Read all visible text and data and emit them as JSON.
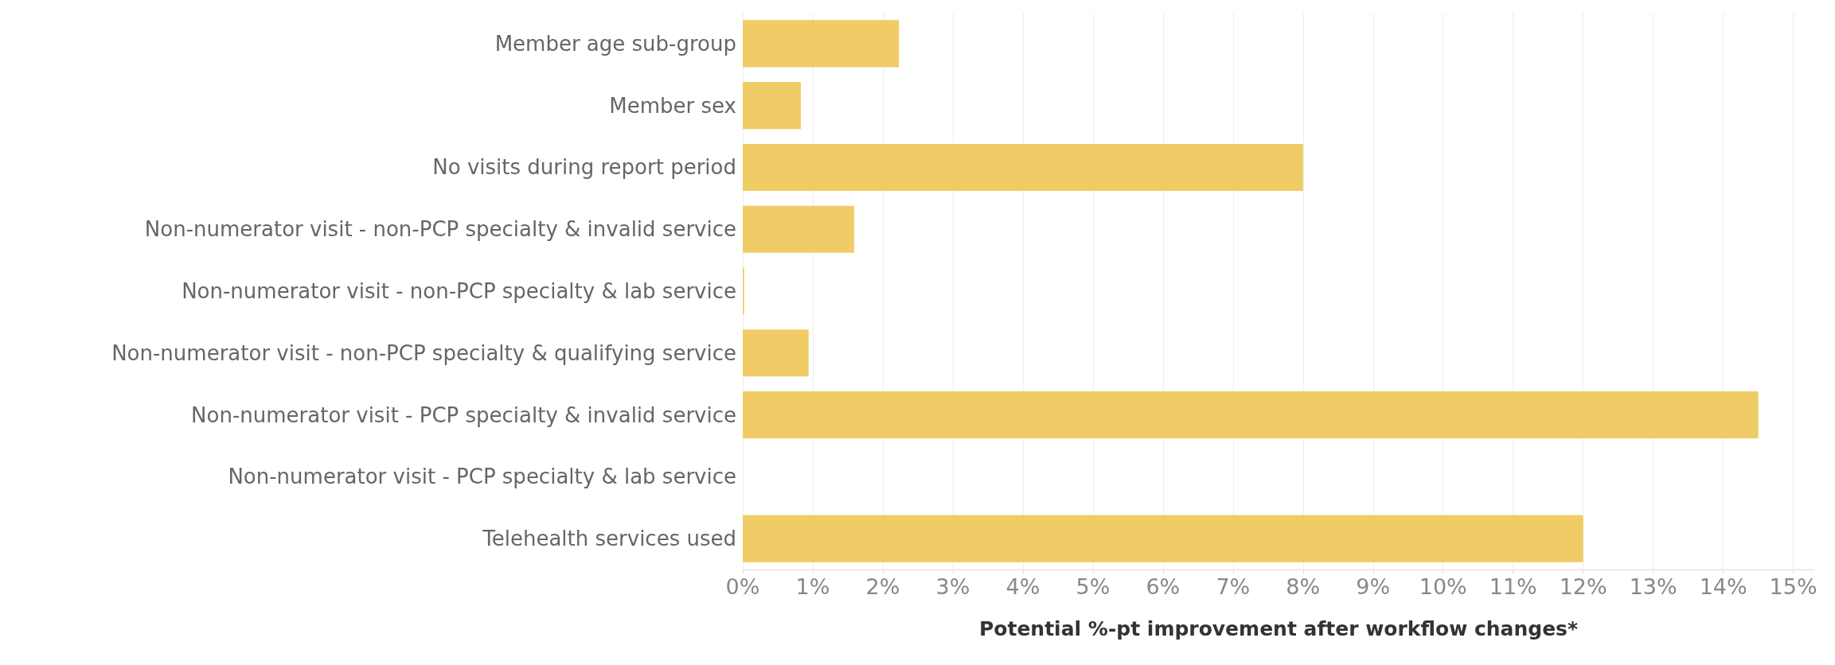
{
  "chart_data": {
    "type": "bar",
    "orientation": "horizontal",
    "xlabel": "Potential %-pt improvement after workflow changes*",
    "categories": [
      "Member age sub-group",
      "Member sex",
      "No visits during report period",
      "Non-numerator visit - non-PCP specialty & invalid service",
      "Non-numerator visit - non-PCP specialty & lab service",
      "Non-numerator visit - non-PCP specialty & qualifying service",
      "Non-numerator visit - PCP specialty & invalid service",
      "Non-numerator visit - PCP specialty & lab service",
      "Telehealth services used"
    ],
    "values": [
      2.23,
      0.83,
      8.0,
      1.59,
      0.02,
      0.94,
      14.5,
      0,
      12.0
    ],
    "color": "#efcc66",
    "xlim": [
      0,
      15.3
    ],
    "xticks": [
      {
        "value": 0,
        "label": "0%"
      },
      {
        "value": 1,
        "label": "1%"
      },
      {
        "value": 2,
        "label": "2%"
      },
      {
        "value": 3,
        "label": "3%"
      },
      {
        "value": 4,
        "label": "4%"
      },
      {
        "value": 5,
        "label": "5%"
      },
      {
        "value": 6,
        "label": "6%"
      },
      {
        "value": 7,
        "label": "7%"
      },
      {
        "value": 8,
        "label": "8%"
      },
      {
        "value": 9,
        "label": "9%"
      },
      {
        "value": 10,
        "label": "10%"
      },
      {
        "value": 11,
        "label": "11%"
      },
      {
        "value": 12,
        "label": "12%"
      },
      {
        "value": 13,
        "label": "13%"
      },
      {
        "value": 14,
        "label": "14%"
      },
      {
        "value": 15,
        "label": "15%"
      }
    ],
    "grid": "x"
  }
}
